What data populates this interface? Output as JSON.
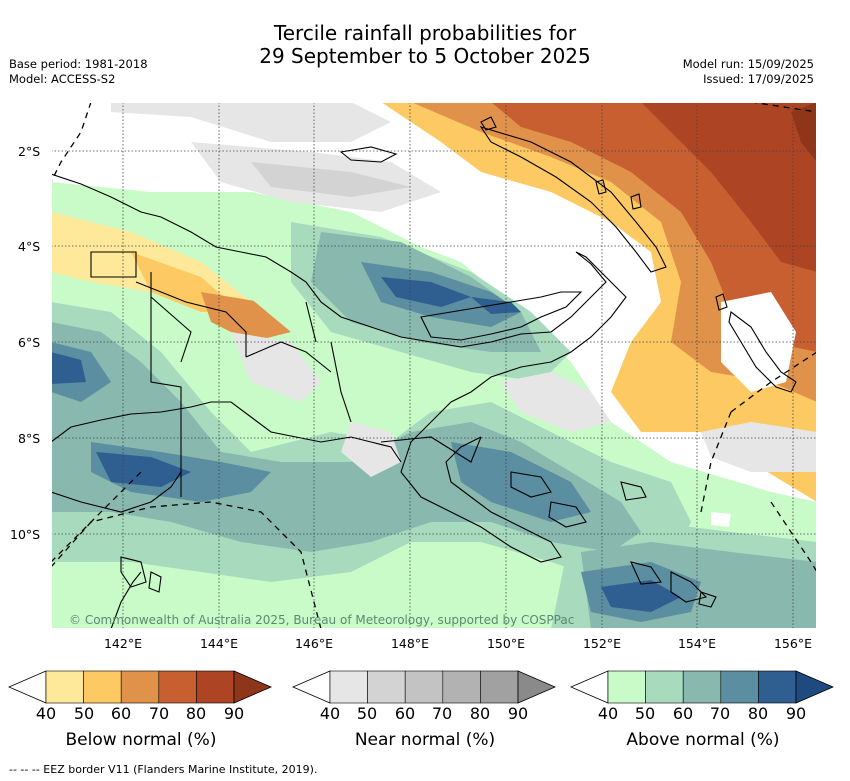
{
  "title": {
    "line1": "Tercile rainfall probabilities for",
    "line2": "29 September to 5 October 2025"
  },
  "meta": {
    "base_period": "Base period: 1981-2018",
    "model": "Model: ACCESS-S2",
    "model_run": "Model run: 15/09/2025",
    "issued": "Issued: 17/09/2025"
  },
  "map": {
    "lat_labels": [
      "2°S",
      "4°S",
      "6°S",
      "8°S",
      "10°S"
    ],
    "lon_labels": [
      "142°E",
      "144°E",
      "146°E",
      "148°E",
      "150°E",
      "152°E",
      "154°E",
      "156°E"
    ],
    "copyright": "© Commonwealth of Australia 2025, Bureau of Meteorology, supported by COSPPac"
  },
  "colorbars": [
    {
      "title": "Below normal (%)",
      "ticks": [
        "40",
        "50",
        "60",
        "70",
        "80",
        "90"
      ],
      "colors": [
        "#ffffff",
        "#fee99a",
        "#fdc962",
        "#e0924a",
        "#c85f30",
        "#ad4423",
        "#8f3519"
      ]
    },
    {
      "title": "Near normal (%)",
      "ticks": [
        "40",
        "50",
        "60",
        "70",
        "80",
        "90"
      ],
      "colors": [
        "#ffffff",
        "#e6e6e6",
        "#d3d3d3",
        "#c3c3c3",
        "#b2b2b2",
        "#a1a1a1",
        "#8a8a8a"
      ]
    },
    {
      "title": "Above normal (%)",
      "ticks": [
        "40",
        "50",
        "60",
        "70",
        "80",
        "90"
      ],
      "colors": [
        "#ffffff",
        "#c9fbc9",
        "#a8dabe",
        "#88b8ae",
        "#5a8ea0",
        "#2f5e90",
        "#1f4a80"
      ]
    }
  ],
  "footnote": "-- -- -- EEZ border V11 (Flanders Marine Institute, 2019)."
}
